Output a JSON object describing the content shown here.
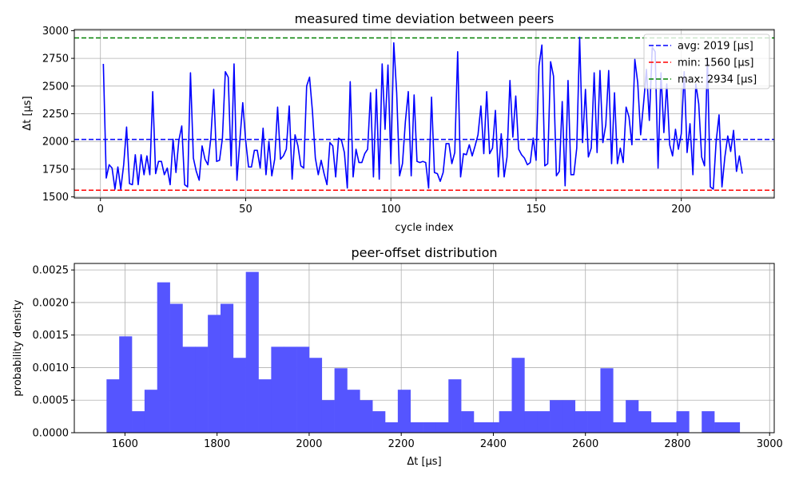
{
  "chart_data": [
    {
      "type": "line",
      "title": "measured time deviation between peers",
      "xlabel": "cycle index",
      "ylabel": "Δt [µs]",
      "xlim": [
        -9,
        232
      ],
      "ylim": [
        1490,
        3010
      ],
      "xticks": [
        0,
        50,
        100,
        150,
        200
      ],
      "yticks": [
        1500,
        1750,
        2000,
        2250,
        2500,
        2750,
        3000
      ],
      "grid": true,
      "legend_position": "top-right",
      "series": [
        {
          "color": "#0000ff",
          "x_start": 1,
          "values": [
            2700,
            1670,
            1790,
            1760,
            1570,
            1770,
            1570,
            1790,
            2130,
            1620,
            1610,
            1880,
            1610,
            1880,
            1700,
            1870,
            1700,
            2450,
            1710,
            1820,
            1820,
            1700,
            1760,
            1610,
            2020,
            1720,
            2010,
            2140,
            1610,
            1590,
            2620,
            1850,
            1730,
            1650,
            1960,
            1840,
            1790,
            2030,
            2470,
            1820,
            1830,
            2030,
            2630,
            2580,
            1780,
            2700,
            1650,
            2010,
            2350,
            2010,
            1770,
            1770,
            1920,
            1920,
            1760,
            2120,
            1700,
            2000,
            1690,
            1840,
            2310,
            1840,
            1870,
            1930,
            2320,
            1660,
            2060,
            1960,
            1780,
            1760,
            2500,
            2580,
            2270,
            1850,
            1700,
            1830,
            1710,
            1610,
            1990,
            1960,
            1680,
            2030,
            2010,
            1900,
            1580,
            2540,
            1680,
            1930,
            1810,
            1810,
            1890,
            1930,
            2440,
            1680,
            2470,
            1660,
            2700,
            2110,
            2690,
            1800,
            2890,
            2440,
            1690,
            1800,
            2180,
            2450,
            1690,
            2420,
            1820,
            1810,
            1820,
            1810,
            1580,
            2400,
            1720,
            1710,
            1640,
            1720,
            1980,
            1980,
            1800,
            1900,
            2810,
            1680,
            1890,
            1880,
            1970,
            1870,
            1960,
            2060,
            2320,
            1890,
            2450,
            1890,
            1940,
            2280,
            1680,
            2070,
            1680,
            1860,
            2550,
            2040,
            2410,
            1930,
            1880,
            1850,
            1790,
            1810,
            2030,
            1830,
            2680,
            2870,
            1780,
            1800,
            2720,
            2590,
            1690,
            1730,
            2360,
            1600,
            2550,
            1700,
            1700,
            1940,
            2940,
            1990,
            2470,
            1860,
            1940,
            2620,
            1900,
            2640,
            1990,
            2150,
            2640,
            1800,
            2440,
            1800,
            1940,
            1810,
            2310,
            2220,
            1970,
            2740,
            2530,
            2060,
            2340,
            2650,
            2190,
            2850,
            2810,
            1760,
            2620,
            2080,
            2520,
            1970,
            1870,
            2110,
            1930,
            2070,
            2630,
            1900,
            2160,
            1700,
            2520,
            2340,
            1860,
            1780,
            2750,
            1590,
            1570,
            2000,
            2240,
            1590,
            1860,
            2050,
            1910,
            2100,
            1730,
            1870,
            1710
          ]
        }
      ],
      "reference_lines": [
        {
          "label": "avg: 2019 [µs]",
          "value": 2019,
          "color": "#0000ff"
        },
        {
          "label": "min: 1560 [µs]",
          "value": 1560,
          "color": "#ff0000"
        },
        {
          "label": "max: 2934 [µs]",
          "value": 2934,
          "color": "#008000"
        }
      ]
    },
    {
      "type": "bar",
      "title": "peer-offset distribution",
      "xlabel": "Δt [µs]",
      "ylabel": "probability density",
      "xlim": [
        1490,
        3010
      ],
      "ylim": [
        0,
        0.0026
      ],
      "xticks": [
        1600,
        1800,
        2000,
        2200,
        2400,
        2600,
        2800,
        3000
      ],
      "yticks": [
        "0.0000",
        "0.0005",
        "0.0010",
        "0.0015",
        "0.0020",
        "0.0025"
      ],
      "grid": true,
      "color": "#5555ff",
      "bin_start": 1560,
      "bin_width": 27.5,
      "values": [
        0.00082,
        0.00148,
        0.00033,
        0.00066,
        0.00231,
        0.00198,
        0.00132,
        0.00132,
        0.00181,
        0.00198,
        0.00115,
        0.00247,
        0.00082,
        0.00132,
        0.00132,
        0.00132,
        0.00115,
        0.0005,
        0.00099,
        0.00066,
        0.0005,
        0.00033,
        0.00016,
        0.00066,
        0.00016,
        0.00016,
        0.00016,
        0.00082,
        0.00033,
        0.00016,
        0.00016,
        0.00033,
        0.00115,
        0.00033,
        0.00033,
        0.0005,
        0.0005,
        0.00033,
        0.00033,
        0.00099,
        0.00016,
        0.0005,
        0.00033,
        0.00016,
        0.00016,
        0.00033,
        0,
        0.00033,
        0.00016,
        0.00016
      ]
    }
  ]
}
